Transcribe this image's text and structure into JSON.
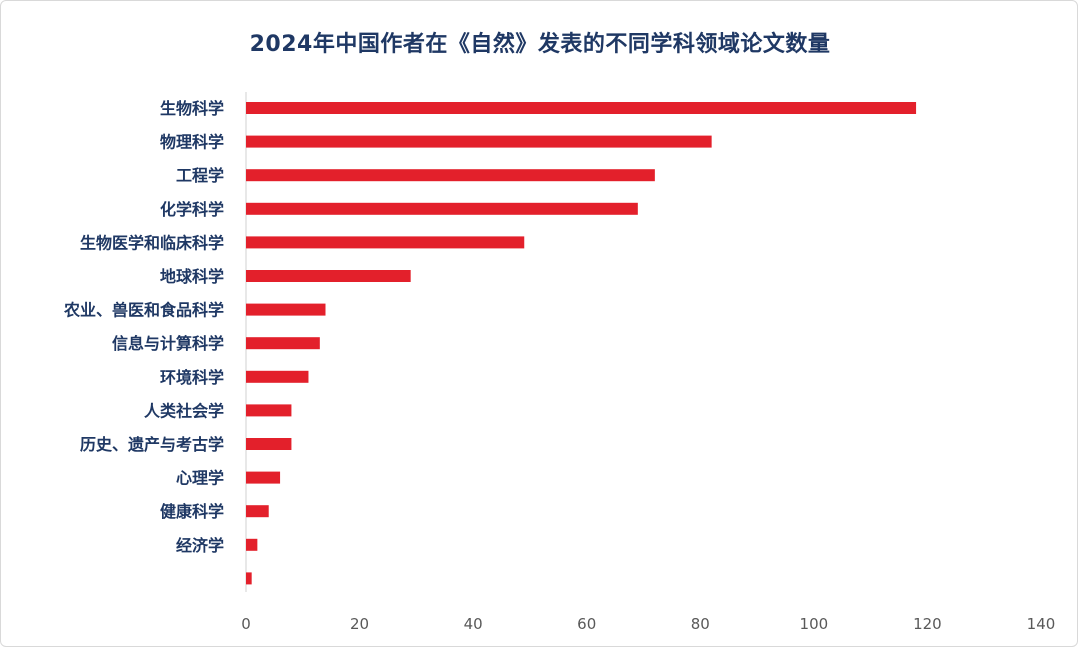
{
  "chart_data": {
    "type": "bar",
    "orientation": "horizontal",
    "title": "2024年中国作者在《自然》发表的不同学科领域论文数量",
    "categories": [
      "生物科学",
      "物理科学",
      "工程学",
      "化学科学",
      "生物医学和临床科学",
      "地球科学",
      "农业、兽医和食品科学",
      "信息与计算科学",
      "环境科学",
      "人类社会学",
      "历史、遗产与考古学",
      "心理学",
      "健康科学",
      "经济学",
      ""
    ],
    "values": [
      118,
      82,
      72,
      69,
      49,
      29,
      14,
      13,
      11,
      8,
      8,
      6,
      4,
      2,
      1
    ],
    "xlim": [
      0,
      140
    ],
    "xticks": [
      0,
      20,
      40,
      60,
      80,
      100,
      120,
      140
    ],
    "xlabel": "",
    "ylabel": "",
    "grid": false,
    "legend": "none",
    "bar_color": "#e3202b",
    "title_color": "#1f3864"
  }
}
